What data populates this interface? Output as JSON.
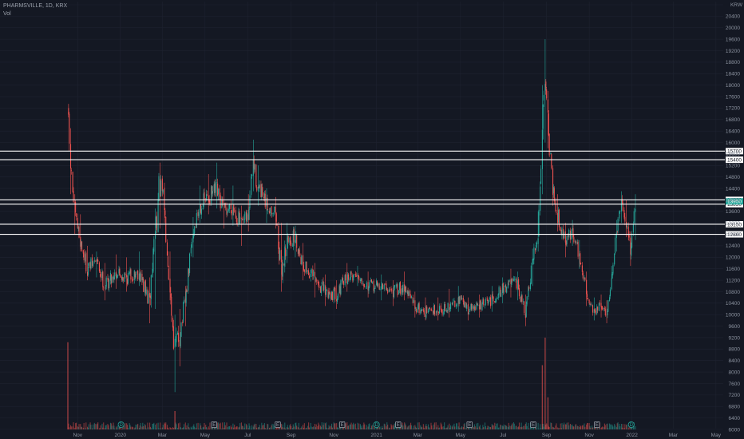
{
  "header": {
    "symbol_line": "PHARMSVILLE, 1D, KRX",
    "volume_label": "Vol"
  },
  "colors": {
    "background": "#141823",
    "grid": "#1e2230",
    "up": "#26a69a",
    "down": "#ef5350",
    "level_line": "#ffffff",
    "last_price_badge": "#26a69a",
    "axis_text": "#8c93a0"
  },
  "chart_data": {
    "type": "candlestick",
    "currency": "KRW",
    "y_axis": {
      "position": "right",
      "ylim": [
        6000,
        20800
      ],
      "ticks": [
        6000,
        6400,
        6800,
        7200,
        7600,
        8000,
        8400,
        8800,
        9200,
        9600,
        10000,
        10400,
        10800,
        11200,
        11600,
        12000,
        12400,
        12800,
        13200,
        13600,
        14000,
        14400,
        14800,
        15200,
        15600,
        16000,
        16400,
        16800,
        17200,
        17600,
        18000,
        18400,
        18800,
        19200,
        19600,
        20000,
        20400,
        20800
      ]
    },
    "x_axis": {
      "labels": [
        {
          "label": "Nov",
          "date": "2019-11-01"
        },
        {
          "label": "2020",
          "date": "2020-01-01"
        },
        {
          "label": "Mar",
          "date": "2020-03-01"
        },
        {
          "label": "May",
          "date": "2020-05-01"
        },
        {
          "label": "Jul",
          "date": "2020-07-01"
        },
        {
          "label": "Sep",
          "date": "2020-09-01"
        },
        {
          "label": "Nov",
          "date": "2020-11-01"
        },
        {
          "label": "2021",
          "date": "2021-01-01"
        },
        {
          "label": "Mar",
          "date": "2021-03-01"
        },
        {
          "label": "May",
          "date": "2021-05-01"
        },
        {
          "label": "Jul",
          "date": "2021-07-01"
        },
        {
          "label": "Sep",
          "date": "2021-09-01"
        },
        {
          "label": "Nov",
          "date": "2021-11-01"
        },
        {
          "label": "2022",
          "date": "2022-01-01"
        },
        {
          "label": "Mar",
          "date": "2022-03-01"
        },
        {
          "label": "May",
          "date": "2022-05-01"
        }
      ]
    },
    "horizontal_levels": [
      15700,
      15400,
      14000,
      13850,
      13150,
      12800
    ],
    "last_price": 13950,
    "price_path": [
      {
        "date": "2019-10-18",
        "close": 17200,
        "high": 17900,
        "low": 15800
      },
      {
        "date": "2019-10-22",
        "close": 15200,
        "high": 16500,
        "low": 14200
      },
      {
        "date": "2019-10-28",
        "close": 13500,
        "high": 14200,
        "low": 12800
      },
      {
        "date": "2019-11-05",
        "close": 12600,
        "high": 13500,
        "low": 12200
      },
      {
        "date": "2019-11-15",
        "close": 11600,
        "high": 12400,
        "low": 11200
      },
      {
        "date": "2019-11-28",
        "close": 11900,
        "high": 12200,
        "low": 11300
      },
      {
        "date": "2019-12-10",
        "close": 11000,
        "high": 11800,
        "low": 10500
      },
      {
        "date": "2019-12-26",
        "close": 11500,
        "high": 12100,
        "low": 10900
      },
      {
        "date": "2020-01-10",
        "close": 11300,
        "high": 12000,
        "low": 10800
      },
      {
        "date": "2020-01-28",
        "close": 11500,
        "high": 12200,
        "low": 11000
      },
      {
        "date": "2020-02-12",
        "close": 10400,
        "high": 11300,
        "low": 9700
      },
      {
        "date": "2020-02-20",
        "close": 13000,
        "high": 13700,
        "low": 10200
      },
      {
        "date": "2020-02-27",
        "close": 14500,
        "high": 15300,
        "low": 13000
      },
      {
        "date": "2020-03-04",
        "close": 13800,
        "high": 14600,
        "low": 13200
      },
      {
        "date": "2020-03-12",
        "close": 11000,
        "high": 12200,
        "low": 10500
      },
      {
        "date": "2020-03-19",
        "close": 8800,
        "high": 10000,
        "low": 7300
      },
      {
        "date": "2020-03-26",
        "close": 9300,
        "high": 10200,
        "low": 8200
      },
      {
        "date": "2020-04-03",
        "close": 10400,
        "high": 11000,
        "low": 9600
      },
      {
        "date": "2020-04-14",
        "close": 12800,
        "high": 13400,
        "low": 12000
      },
      {
        "date": "2020-04-24",
        "close": 13800,
        "high": 14500,
        "low": 13200
      },
      {
        "date": "2020-05-06",
        "close": 14100,
        "high": 14900,
        "low": 13500
      },
      {
        "date": "2020-05-18",
        "close": 14300,
        "high": 15300,
        "low": 13700
      },
      {
        "date": "2020-05-28",
        "close": 13600,
        "high": 14400,
        "low": 13000
      },
      {
        "date": "2020-06-10",
        "close": 13800,
        "high": 14500,
        "low": 13100
      },
      {
        "date": "2020-06-22",
        "close": 13100,
        "high": 13800,
        "low": 12400
      },
      {
        "date": "2020-07-02",
        "close": 13400,
        "high": 14200,
        "low": 12900
      },
      {
        "date": "2020-07-09",
        "close": 15300,
        "high": 16100,
        "low": 14300
      },
      {
        "date": "2020-07-16",
        "close": 14400,
        "high": 15200,
        "low": 13800
      },
      {
        "date": "2020-07-28",
        "close": 13800,
        "high": 14400,
        "low": 13200
      },
      {
        "date": "2020-08-10",
        "close": 13600,
        "high": 14100,
        "low": 13000
      },
      {
        "date": "2020-08-18",
        "close": 11500,
        "high": 13200,
        "low": 10800
      },
      {
        "date": "2020-08-26",
        "close": 12500,
        "high": 13200,
        "low": 11800
      },
      {
        "date": "2020-09-07",
        "close": 12700,
        "high": 13100,
        "low": 12000
      },
      {
        "date": "2020-09-18",
        "close": 11800,
        "high": 12500,
        "low": 11200
      },
      {
        "date": "2020-10-05",
        "close": 11200,
        "high": 11800,
        "low": 10600
      },
      {
        "date": "2020-10-20",
        "close": 10800,
        "high": 11400,
        "low": 10300
      },
      {
        "date": "2020-11-05",
        "close": 10700,
        "high": 11200,
        "low": 10200
      },
      {
        "date": "2020-11-20",
        "close": 11300,
        "high": 11800,
        "low": 10800
      },
      {
        "date": "2020-12-05",
        "close": 11400,
        "high": 11700,
        "low": 11000
      },
      {
        "date": "2020-12-20",
        "close": 11000,
        "high": 11500,
        "low": 10600
      },
      {
        "date": "2021-01-08",
        "close": 11000,
        "high": 11400,
        "low": 10500
      },
      {
        "date": "2021-01-25",
        "close": 10800,
        "high": 11200,
        "low": 10300
      },
      {
        "date": "2021-02-10",
        "close": 11000,
        "high": 11500,
        "low": 10500
      },
      {
        "date": "2021-02-25",
        "close": 10300,
        "high": 10800,
        "low": 9900
      },
      {
        "date": "2021-03-12",
        "close": 10100,
        "high": 10600,
        "low": 9800
      },
      {
        "date": "2021-03-30",
        "close": 10200,
        "high": 10600,
        "low": 9800
      },
      {
        "date": "2021-04-15",
        "close": 10200,
        "high": 10900,
        "low": 9900
      },
      {
        "date": "2021-04-28",
        "close": 10600,
        "high": 11000,
        "low": 10100
      },
      {
        "date": "2021-05-12",
        "close": 10200,
        "high": 10600,
        "low": 9800
      },
      {
        "date": "2021-05-28",
        "close": 10300,
        "high": 10700,
        "low": 9900
      },
      {
        "date": "2021-06-15",
        "close": 10500,
        "high": 11000,
        "low": 10100
      },
      {
        "date": "2021-06-30",
        "close": 10900,
        "high": 11300,
        "low": 10400
      },
      {
        "date": "2021-07-12",
        "close": 11100,
        "high": 11600,
        "low": 10600
      },
      {
        "date": "2021-07-22",
        "close": 11000,
        "high": 11500,
        "low": 10500
      },
      {
        "date": "2021-08-02",
        "close": 10000,
        "high": 10700,
        "low": 9600
      },
      {
        "date": "2021-08-12",
        "close": 11700,
        "high": 12300,
        "low": 11000
      },
      {
        "date": "2021-08-20",
        "close": 12800,
        "high": 13600,
        "low": 12200
      },
      {
        "date": "2021-08-26",
        "close": 16500,
        "high": 18000,
        "low": 14200
      },
      {
        "date": "2021-08-30",
        "close": 18800,
        "high": 19600,
        "low": 16000
      },
      {
        "date": "2021-09-03",
        "close": 16800,
        "high": 17800,
        "low": 15800
      },
      {
        "date": "2021-09-10",
        "close": 14500,
        "high": 15200,
        "low": 13800
      },
      {
        "date": "2021-09-17",
        "close": 13500,
        "high": 14200,
        "low": 12900
      },
      {
        "date": "2021-09-28",
        "close": 12600,
        "high": 13200,
        "low": 12000
      },
      {
        "date": "2021-10-08",
        "close": 12900,
        "high": 13300,
        "low": 12400
      },
      {
        "date": "2021-10-18",
        "close": 12100,
        "high": 12600,
        "low": 11600
      },
      {
        "date": "2021-10-28",
        "close": 10800,
        "high": 11500,
        "low": 10300
      },
      {
        "date": "2021-11-08",
        "close": 10100,
        "high": 10600,
        "low": 9800
      },
      {
        "date": "2021-11-18",
        "close": 10300,
        "high": 10700,
        "low": 9900
      },
      {
        "date": "2021-11-26",
        "close": 10000,
        "high": 10500,
        "low": 9700
      },
      {
        "date": "2021-12-03",
        "close": 11200,
        "high": 11700,
        "low": 10900
      },
      {
        "date": "2021-12-10",
        "close": 12800,
        "high": 13300,
        "low": 12200
      },
      {
        "date": "2021-12-17",
        "close": 13800,
        "high": 14300,
        "low": 13200
      },
      {
        "date": "2021-12-24",
        "close": 13200,
        "high": 14000,
        "low": 12700
      },
      {
        "date": "2021-12-30",
        "close": 12200,
        "high": 12900,
        "low": 11700
      },
      {
        "date": "2022-01-06",
        "close": 13950,
        "high": 14200,
        "low": 12600
      }
    ],
    "volume_spikes": [
      {
        "date": "2019-10-18",
        "rel": 0.95
      },
      {
        "date": "2020-03-19",
        "rel": 0.2
      },
      {
        "date": "2021-08-26",
        "rel": 0.7
      },
      {
        "date": "2021-08-30",
        "rel": 1.0
      },
      {
        "date": "2021-09-03",
        "rel": 0.35
      }
    ],
    "event_markers": [
      {
        "date": "2020-01-02",
        "label": "D",
        "color": "#26a69a"
      },
      {
        "date": "2020-05-14",
        "label": "E",
        "color": "#9aa0ab"
      },
      {
        "date": "2020-08-13",
        "label": "E",
        "color": "#9aa0ab"
      },
      {
        "date": "2020-11-13",
        "label": "E",
        "color": "#9aa0ab"
      },
      {
        "date": "2021-01-01",
        "label": "D",
        "color": "#26a69a"
      },
      {
        "date": "2021-02-01",
        "label": "E",
        "color": "#9aa0ab"
      },
      {
        "date": "2021-05-14",
        "label": "E",
        "color": "#9aa0ab"
      },
      {
        "date": "2021-08-13",
        "label": "E",
        "color": "#9aa0ab"
      },
      {
        "date": "2021-11-12",
        "label": "E",
        "color": "#9aa0ab"
      },
      {
        "date": "2021-12-31",
        "label": "D",
        "color": "#26a69a"
      }
    ]
  }
}
